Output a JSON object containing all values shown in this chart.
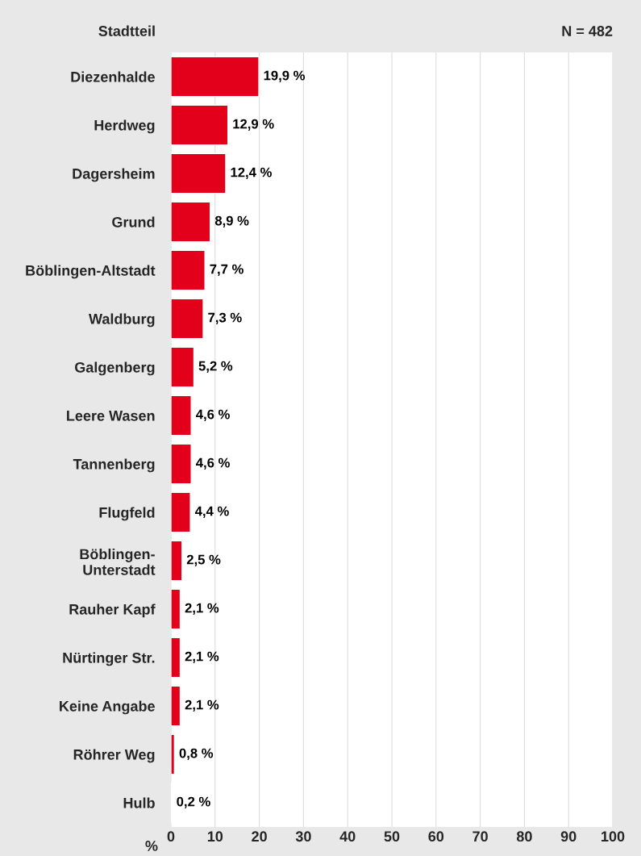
{
  "chart_data": {
    "type": "bar",
    "orientation": "horizontal",
    "ylabel": "Stadtteil",
    "xlabel": "%",
    "annotations": [
      "N = 482"
    ],
    "categories": [
      "Diezenhalde",
      "Herdweg",
      "Dagersheim",
      "Grund",
      "Böblingen-Altstadt",
      "Waldburg",
      "Galgenberg",
      "Leere Wasen",
      "Tannenberg",
      "Flugfeld",
      "Böblingen-\nUnterstadt",
      "Rauher Kapf",
      "Nürtinger Str.",
      "Keine Angabe",
      "Röhrer Weg",
      "Hulb"
    ],
    "values": [
      19.9,
      12.9,
      12.4,
      8.9,
      7.7,
      7.3,
      5.2,
      4.6,
      4.6,
      4.4,
      2.5,
      2.1,
      2.1,
      2.1,
      0.8,
      0.2
    ],
    "value_labels": [
      "19,9 %",
      "12,9 %",
      "12,4 %",
      "8,9 %",
      "7,7 %",
      "7,3 %",
      "5,2 %",
      "4,6 %",
      "4,6 %",
      "4,4 %",
      "2,5 %",
      "2,1 %",
      "2,1 %",
      "2,1 %",
      "0,8 %",
      "0,2 %"
    ],
    "color": "#e3001b",
    "xlim": [
      0,
      100
    ],
    "xticks": [
      0,
      10,
      20,
      30,
      40,
      50,
      60,
      70,
      80,
      90,
      100
    ],
    "grid": "x",
    "legend": false
  }
}
